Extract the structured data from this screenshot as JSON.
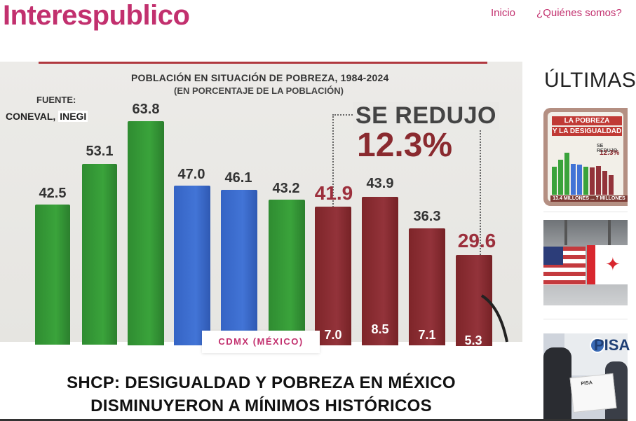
{
  "site": {
    "title": "Interespublico"
  },
  "nav": {
    "items": [
      "Inicio",
      "¿Quiénes somos?"
    ]
  },
  "featured": {
    "category": "CDMX (MÉXICO)",
    "headline": "SHCP: DESIGUALDAD Y POBREZA EN MÉXICO DISMINUYERON A MÍNIMOS HISTÓRICOS",
    "infographic": {
      "title": "POBLACIÓN EN SITUACIÓN DE POBREZA, 1984-2024",
      "subtitle": "(EN PORCENTAJE DE LA POBLACIÓN)",
      "source_label": "FUENTE:",
      "source_value": "CONEVAL,",
      "source_inegi": "INEGI",
      "reduction_label": "SE REDUJO",
      "reduction_value": "12.3%",
      "bars": [
        {
          "value": "42.5",
          "color": "green"
        },
        {
          "value": "53.1",
          "color": "green"
        },
        {
          "value": "63.8",
          "color": "green"
        },
        {
          "value": "47.0",
          "color": "blue"
        },
        {
          "value": "46.1",
          "color": "blue"
        },
        {
          "value": "43.2",
          "color": "green"
        },
        {
          "value": "41.9",
          "color": "red",
          "highlight": true,
          "bottom": "7.0"
        },
        {
          "value": "43.9",
          "color": "red",
          "bottom": "8.5"
        },
        {
          "value": "36.3",
          "color": "red",
          "bottom": "7.1"
        },
        {
          "value": "29.6",
          "color": "red",
          "highlight": true,
          "bottom": "5.3"
        }
      ]
    }
  },
  "sidebar": {
    "heading": "ÚLTIMAS",
    "items": [
      {
        "image": "poverty-infographic-thumbnail",
        "title_lines": [
          "LA POBREZA",
          "Y LA DESIGUALDAD"
        ],
        "reduction_label": "SE REDUJO",
        "reduction_value": "12.3%",
        "footer": "13.4 MILLONES ... 7 MILLONES"
      },
      {
        "image": "us-canada-flags-thumbnail"
      },
      {
        "image": "pisa-exam-thumbnail",
        "logo_text": "PISA",
        "paper_text": "PISA"
      }
    ]
  },
  "colors": {
    "brand": "#c2306e",
    "bar_green": "#3aa33b",
    "bar_blue": "#4274d6",
    "bar_red": "#93333a"
  }
}
